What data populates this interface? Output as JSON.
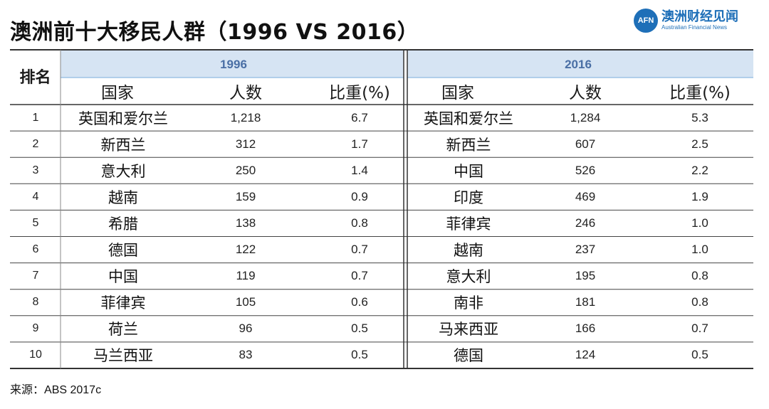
{
  "title": "澳洲前十大移民人群（1996 VS 2016）",
  "logo": {
    "mark": "AFN",
    "name_cn": "澳洲财经见闻",
    "name_en": "Australian Financial News"
  },
  "colors": {
    "header_band": "#d6e4f3",
    "header_line": "#9dc3e6",
    "brand": "#1e6fb8"
  },
  "chart_data": {
    "type": "table",
    "rank_header": "排名",
    "groups": [
      {
        "year": "1996",
        "columns": [
          "国家",
          "人数",
          "比重(%)"
        ],
        "rows": [
          [
            "英国和爱尔兰",
            "1,218",
            "6.7"
          ],
          [
            "新西兰",
            "312",
            "1.7"
          ],
          [
            "意大利",
            "250",
            "1.4"
          ],
          [
            "越南",
            "159",
            "0.9"
          ],
          [
            "希腊",
            "138",
            "0.8"
          ],
          [
            "德国",
            "122",
            "0.7"
          ],
          [
            "中国",
            "119",
            "0.7"
          ],
          [
            "菲律宾",
            "105",
            "0.6"
          ],
          [
            "荷兰",
            "96",
            "0.5"
          ],
          [
            "马兰西亚",
            "83",
            "0.5"
          ]
        ]
      },
      {
        "year": "2016",
        "columns": [
          "国家",
          "人数",
          "比重(%)"
        ],
        "rows": [
          [
            "英国和爱尔兰",
            "1,284",
            "5.3"
          ],
          [
            "新西兰",
            "607",
            "2.5"
          ],
          [
            "中国",
            "526",
            "2.2"
          ],
          [
            "印度",
            "469",
            "1.9"
          ],
          [
            "菲律宾",
            "246",
            "1.0"
          ],
          [
            "越南",
            "237",
            "1.0"
          ],
          [
            "意大利",
            "195",
            "0.8"
          ],
          [
            "南非",
            "181",
            "0.8"
          ],
          [
            "马来西亚",
            "166",
            "0.7"
          ],
          [
            "德国",
            "124",
            "0.5"
          ]
        ]
      }
    ],
    "ranks": [
      "1",
      "2",
      "3",
      "4",
      "5",
      "6",
      "7",
      "8",
      "9",
      "10"
    ]
  },
  "source": {
    "label": "来源：",
    "text": "ABS 2017c"
  }
}
